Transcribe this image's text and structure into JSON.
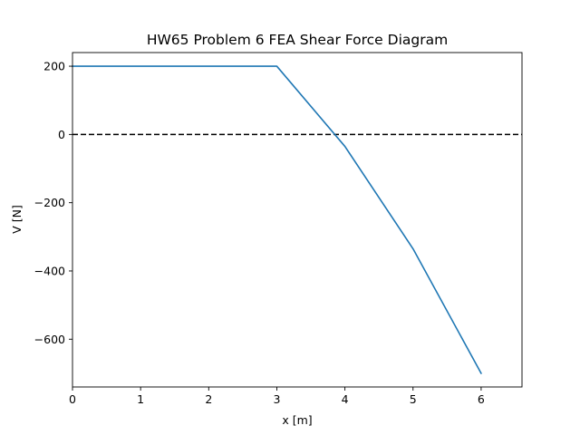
{
  "chart_data": {
    "type": "line",
    "title": "HW65 Problem 6 FEA Shear Force Diagram",
    "xlabel": "x [m]",
    "ylabel": "V [N]",
    "xlim": [
      0,
      6.6
    ],
    "ylim": [
      -740,
      240
    ],
    "xticks": [
      0,
      1,
      2,
      3,
      4,
      5,
      6
    ],
    "xtick_labels": [
      "0",
      "1",
      "2",
      "3",
      "4",
      "5",
      "6"
    ],
    "yticks": [
      200,
      0,
      -200,
      -400,
      -600
    ],
    "ytick_labels": [
      "200",
      "0",
      "−200",
      "−400",
      "−600"
    ],
    "grid": false,
    "series": [
      {
        "color": "#1f77b4",
        "x": [
          0,
          3,
          4,
          5,
          6
        ],
        "y": [
          200,
          200,
          -35,
          -335,
          -700
        ]
      }
    ],
    "reference_lines": [
      {
        "orientation": "horizontal",
        "y": 0,
        "style": "dashed",
        "color": "#000000"
      }
    ]
  }
}
